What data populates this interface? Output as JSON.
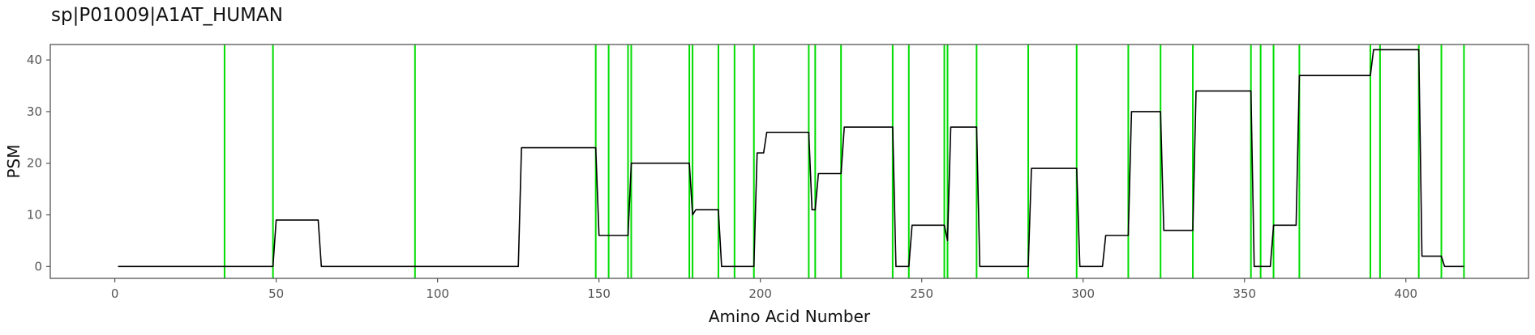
{
  "chart_data": {
    "type": "line",
    "title": "sp|P01009|A1AT_HUMAN",
    "xlabel": "Amino Acid Number",
    "ylabel": "PSM",
    "xlim": [
      -20,
      438
    ],
    "ylim": [
      -2.3,
      43
    ],
    "xticks": [
      0,
      50,
      100,
      150,
      200,
      250,
      300,
      350,
      400
    ],
    "yticks": [
      0,
      10,
      20,
      30,
      40
    ],
    "grid": false,
    "colors": {
      "line": "#000000",
      "markers": "#00dd00",
      "frame": "#555555"
    },
    "series": [
      {
        "x": [
          1,
          49,
          50,
          63,
          64,
          125,
          126,
          149,
          150,
          159,
          160,
          178,
          179,
          180,
          187,
          188,
          198,
          199,
          201,
          202,
          215,
          216,
          217,
          218,
          225,
          226,
          241,
          242,
          246,
          247,
          257,
          258,
          259,
          267,
          268,
          283,
          284,
          298,
          299,
          306,
          307,
          314,
          315,
          324,
          325,
          334,
          335,
          352,
          353,
          358,
          359,
          366,
          367,
          389,
          390,
          404,
          405,
          411,
          412,
          418
        ],
        "y": [
          0,
          0,
          9,
          9,
          0,
          0,
          23,
          23,
          6,
          6,
          20,
          20,
          10,
          11,
          11,
          0,
          0,
          22,
          22,
          26,
          26,
          11,
          11,
          18,
          18,
          27,
          27,
          0,
          0,
          8,
          8,
          5,
          27,
          27,
          0,
          0,
          19,
          19,
          0,
          0,
          6,
          6,
          30,
          30,
          7,
          7,
          34,
          34,
          0,
          0,
          8,
          8,
          37,
          37,
          42,
          42,
          2,
          2,
          0,
          0
        ]
      }
    ],
    "marker_lines_x": [
      34,
      49,
      93,
      149,
      153,
      159,
      160,
      178,
      179,
      187,
      192,
      198,
      215,
      217,
      225,
      241,
      246,
      257,
      258,
      267,
      283,
      298,
      314,
      324,
      334,
      352,
      355,
      359,
      367,
      389,
      392,
      404,
      411,
      418
    ]
  }
}
